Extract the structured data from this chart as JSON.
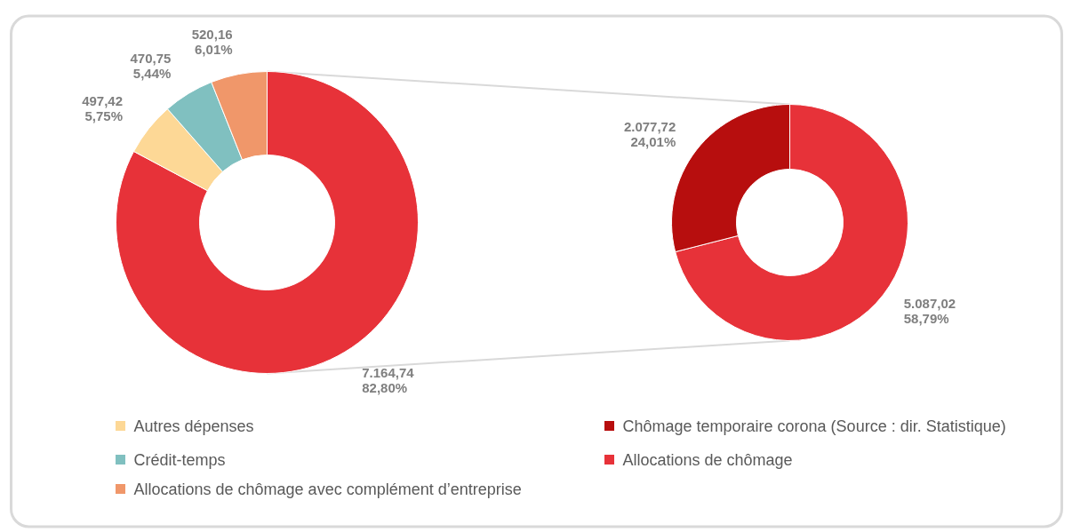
{
  "chart_data": [
    {
      "type": "donut",
      "categories": [
        "Autres dépenses",
        "Crédit-temps",
        "Allocations de chômage avec complément d’entreprise",
        null
      ],
      "values": [
        497.42,
        470.75,
        520.16,
        7164.74
      ],
      "colors": [
        "#fdd896",
        "#80c0c0",
        "#f0976a",
        "#e73239"
      ],
      "value_labels": [
        "497,42\n5,75%",
        "470,75\n5,44%",
        "520,16\n6,01%",
        "7.164,74\n82,80%"
      ],
      "legend": "bottom"
    },
    {
      "type": "donut",
      "categories": [
        "Chômage temporaire corona (Source : dir. Statistique)",
        "Allocations de chômage"
      ],
      "values": [
        2077.72,
        5087.02
      ],
      "colors": [
        "#b70e0e",
        "#e73239"
      ],
      "value_labels": [
        "2.077,72\n24,01%",
        "5.087,02\n58,79%"
      ],
      "legend": "bottom"
    }
  ]
}
